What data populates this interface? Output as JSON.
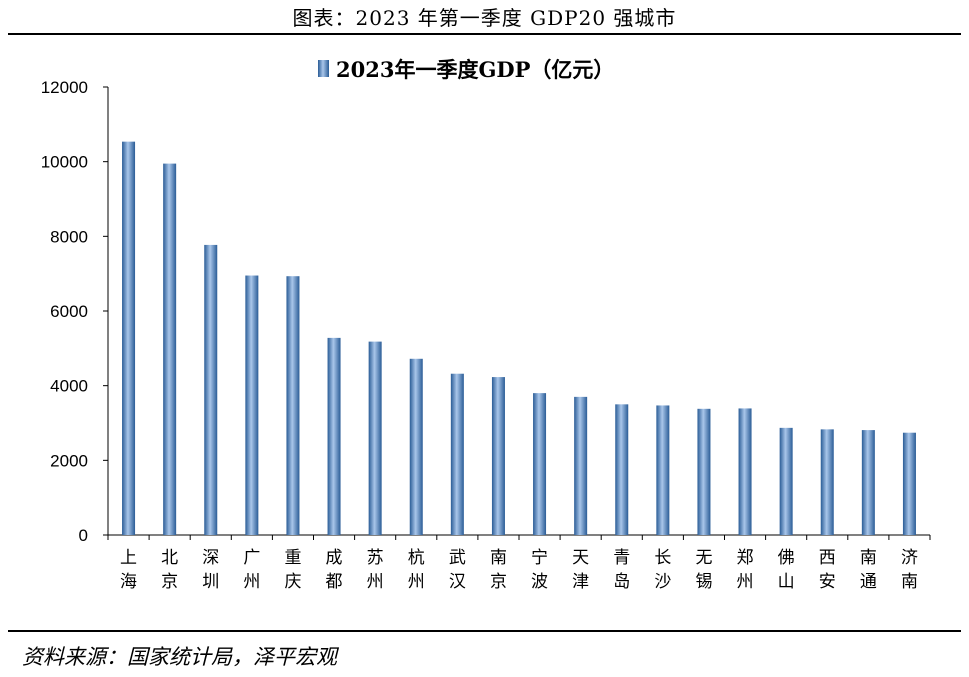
{
  "header": {
    "title": "图表：2023 年第一季度 GDP20 强城市"
  },
  "footer": {
    "source": "资料来源：国家统计局，泽平宏观"
  },
  "colors": {
    "bar": "#4f81bd",
    "bar_dark": "#2a5c96",
    "bar_light": "#a9c6ea"
  },
  "chart_data": {
    "type": "bar",
    "legend": {
      "position": "top-center"
    },
    "categories": [
      "上海",
      "北京",
      "深圳",
      "广州",
      "重庆",
      "成都",
      "苏州",
      "杭州",
      "武汉",
      "南京",
      "宁波",
      "天津",
      "青岛",
      "长沙",
      "无锡",
      "郑州",
      "佛山",
      "西安",
      "南通",
      "济南"
    ],
    "series": [
      {
        "name": "2023年一季度GDP（亿元）",
        "values": [
          10536,
          9948,
          7770,
          6950,
          6932,
          5280,
          5180,
          4720,
          4320,
          4230,
          3800,
          3700,
          3500,
          3470,
          3380,
          3390,
          2870,
          2830,
          2810,
          2740
        ]
      }
    ],
    "ylim": [
      0,
      12000
    ],
    "yticks": [
      0,
      2000,
      4000,
      6000,
      8000,
      10000,
      12000
    ],
    "grid": false
  }
}
